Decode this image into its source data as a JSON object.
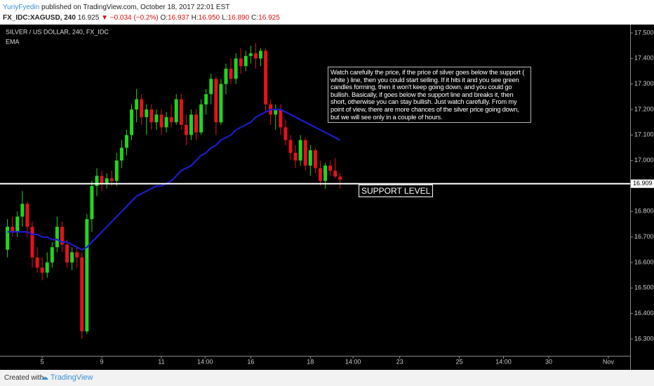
{
  "header": {
    "author": "YuriyFyedin",
    "published": "published on TradingView.com, October 18, 2017 22:01 EST",
    "symbol": "FX_IDC:XAGUSD, 240",
    "last": "16.925",
    "change": "▼ −0.034 (−0.2%)",
    "ohlc": [
      {
        "label": "O:",
        "value": "16.937"
      },
      {
        "label": "H:",
        "value": "16.950"
      },
      {
        "label": "L:",
        "value": "16.890"
      },
      {
        "label": "C:",
        "value": "16.925"
      }
    ]
  },
  "chart_data": {
    "type": "candlestick",
    "title": "SILVER / US DOLLAR, 240, FX_IDC",
    "up_color": "#22d41e",
    "down_color": "#e3131b",
    "x": [
      -7,
      -6,
      -5,
      -4,
      -3,
      -2,
      -1,
      0,
      1,
      2,
      3,
      4,
      5,
      6,
      7,
      8,
      9,
      10,
      11,
      12,
      13,
      14,
      15,
      16,
      17,
      18,
      19,
      20,
      21,
      22,
      23,
      24,
      25,
      26,
      27,
      28,
      29,
      30,
      31,
      32,
      33,
      34,
      35,
      36,
      37,
      38,
      39,
      40,
      41,
      42,
      43,
      44,
      45,
      46,
      47,
      48,
      49,
      50,
      51,
      52,
      53,
      54,
      55,
      56,
      57,
      58,
      59,
      60
    ],
    "open": [
      16.65,
      16.74,
      16.72,
      16.78,
      16.83,
      16.74,
      16.62,
      16.58,
      16.56,
      16.6,
      16.66,
      16.74,
      16.67,
      16.6,
      16.64,
      16.62,
      16.33,
      16.77,
      16.9,
      16.94,
      16.91,
      16.93,
      16.92,
      17.0,
      17.05,
      17.1,
      17.2,
      17.24,
      17.17,
      17.2,
      17.15,
      17.18,
      17.13,
      17.17,
      17.15,
      17.24,
      17.14,
      17.1,
      17.18,
      17.11,
      17.22,
      17.26,
      17.32,
      17.15,
      17.3,
      17.36,
      17.32,
      17.4,
      17.37,
      17.41,
      17.42,
      17.4,
      17.43,
      17.22,
      17.18,
      17.2,
      17.13,
      17.08,
      17.03,
      17.0,
      17.08,
      16.98,
      17.04,
      16.97,
      16.92,
      16.98,
      16.96,
      16.937
    ],
    "high": [
      16.77,
      16.78,
      16.8,
      16.88,
      16.84,
      16.76,
      16.66,
      16.62,
      16.64,
      16.68,
      16.78,
      16.76,
      16.69,
      16.66,
      16.66,
      16.64,
      16.79,
      16.92,
      16.97,
      16.96,
      16.95,
      16.96,
      17.03,
      17.08,
      17.12,
      17.22,
      17.28,
      17.26,
      17.22,
      17.22,
      17.2,
      17.2,
      17.19,
      17.22,
      17.26,
      17.26,
      17.18,
      17.2,
      17.2,
      17.24,
      17.28,
      17.34,
      17.33,
      17.32,
      17.38,
      17.4,
      17.42,
      17.44,
      17.43,
      17.45,
      17.46,
      17.44,
      17.44,
      17.24,
      17.22,
      17.22,
      17.16,
      17.1,
      17.06,
      17.1,
      17.09,
      17.06,
      17.05,
      17.0,
      16.99,
      17.0,
      17.01,
      16.95
    ],
    "low": [
      16.62,
      16.7,
      16.7,
      16.74,
      16.7,
      16.58,
      16.56,
      16.53,
      16.54,
      16.58,
      16.64,
      16.64,
      16.58,
      16.57,
      16.58,
      16.3,
      16.32,
      16.72,
      16.86,
      16.88,
      16.89,
      16.9,
      16.9,
      16.97,
      17.02,
      17.08,
      17.15,
      17.14,
      17.1,
      17.12,
      17.12,
      17.1,
      17.11,
      17.13,
      17.14,
      17.12,
      17.06,
      17.08,
      17.08,
      17.1,
      17.18,
      17.22,
      17.1,
      17.14,
      17.26,
      17.3,
      17.3,
      17.34,
      17.35,
      17.38,
      17.36,
      17.37,
      17.19,
      17.14,
      17.12,
      17.1,
      17.06,
      17.0,
      16.97,
      16.98,
      16.96,
      16.94,
      16.95,
      16.9,
      16.89,
      16.94,
      16.93,
      16.89
    ],
    "close": [
      16.74,
      16.72,
      16.78,
      16.83,
      16.74,
      16.62,
      16.58,
      16.56,
      16.6,
      16.66,
      16.74,
      16.67,
      16.6,
      16.64,
      16.62,
      16.33,
      16.77,
      16.9,
      16.94,
      16.91,
      16.93,
      16.92,
      17.0,
      17.05,
      17.1,
      17.2,
      17.24,
      17.17,
      17.2,
      17.15,
      17.18,
      17.13,
      17.17,
      17.15,
      17.24,
      17.14,
      17.1,
      17.18,
      17.11,
      17.22,
      17.26,
      17.32,
      17.15,
      17.3,
      17.36,
      17.32,
      17.4,
      17.37,
      17.41,
      17.42,
      17.4,
      17.43,
      17.22,
      17.18,
      17.2,
      17.13,
      17.08,
      17.03,
      17.0,
      17.08,
      16.98,
      17.04,
      16.97,
      16.92,
      16.98,
      16.96,
      16.937,
      16.925
    ],
    "ema": {
      "name": "EMA",
      "color": "#1c1ccf",
      "values": [
        16.72,
        16.72,
        16.72,
        16.72,
        16.72,
        16.71,
        16.71,
        16.7,
        16.7,
        16.69,
        16.69,
        16.68,
        16.68,
        16.67,
        16.66,
        16.65,
        16.66,
        16.68,
        16.7,
        16.72,
        16.74,
        16.76,
        16.78,
        16.8,
        16.82,
        16.84,
        16.86,
        16.87,
        16.88,
        16.89,
        16.9,
        16.9,
        16.91,
        16.92,
        16.94,
        16.96,
        16.97,
        16.98,
        17.0,
        17.02,
        17.03,
        17.05,
        17.06,
        17.08,
        17.09,
        17.1,
        17.12,
        17.13,
        17.14,
        17.15,
        17.17,
        17.18,
        17.19,
        17.2,
        17.2,
        17.2,
        17.19,
        17.18,
        17.17,
        17.16,
        17.15,
        17.14,
        17.13,
        17.12,
        17.11,
        17.1,
        17.09,
        17.08
      ]
    },
    "xlim": [
      -8.5,
      118.4
    ],
    "xticks": [
      {
        "value": 0,
        "label": "5"
      },
      {
        "value": 12,
        "label": "9"
      },
      {
        "value": 24,
        "label": "11"
      },
      {
        "value": 32.8,
        "label": "14:00"
      },
      {
        "value": 42,
        "label": "16"
      },
      {
        "value": 54,
        "label": "18"
      },
      {
        "value": 62.6,
        "label": "14:00"
      },
      {
        "value": 72,
        "label": "23"
      },
      {
        "value": 84,
        "label": "25"
      },
      {
        "value": 92.9,
        "label": "14:00"
      },
      {
        "value": 102,
        "label": "30"
      },
      {
        "value": 114,
        "label": "Nov"
      }
    ],
    "ylim": [
      16.234,
      17.533
    ],
    "yticks": [
      {
        "value": 16.3,
        "label": "16.300"
      },
      {
        "value": 16.4,
        "label": "16.400"
      },
      {
        "value": 16.5,
        "label": "16.500"
      },
      {
        "value": 16.6,
        "label": "16.600"
      },
      {
        "value": 16.7,
        "label": "16.700"
      },
      {
        "value": 16.8,
        "label": "16.800"
      },
      {
        "value": 16.9,
        "label": "16.900"
      },
      {
        "value": 17.0,
        "label": "17.000"
      },
      {
        "value": 17.1,
        "label": "17.100"
      },
      {
        "value": 17.2,
        "label": "17.200"
      },
      {
        "value": 17.3,
        "label": "17.300"
      },
      {
        "value": 17.4,
        "label": "17.400"
      },
      {
        "value": 17.5,
        "label": "17.500"
      }
    ],
    "hline": {
      "value": 16.909,
      "label": "16.909",
      "color": "#ffffff"
    },
    "annotations": [
      "Watch carefully the price, if the price of silver goes below the support ( white ) line, then you could start selling. If it hits it and you see green candles forming, then it won't keep going down, and you could go bullish. Basically, if goes below the support line and breaks it, then short, otherwise you can stay bullish. Just watch carefully. From my point of view, there are more chances of the silver price going down, but we will see only in a couple of hours.",
      "SUPPORT LEVEL"
    ]
  },
  "footer": {
    "created": "Created with",
    "brand": "TradingView"
  }
}
